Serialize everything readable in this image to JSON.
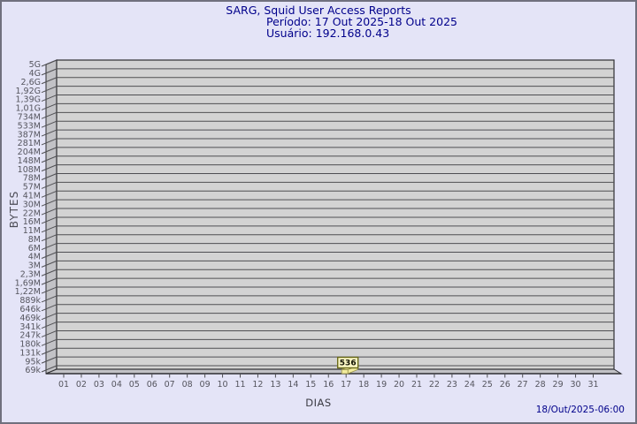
{
  "header": {
    "title": "SARG, Squid User Access Reports",
    "period": "Período: 17 Out 2025-18 Out 2025",
    "user": "Usuário: 192.168.0.43"
  },
  "footer": {
    "timestamp": "18/Out/2025-06:00"
  },
  "chart_data": {
    "type": "bar",
    "title": "SARG, Squid User Access Reports",
    "subtitle_period": "Período: 17 Out 2025-18 Out 2025",
    "subtitle_user": "Usuário: 192.168.0.43",
    "xlabel": "DIAS",
    "ylabel": "BYTES",
    "scale": "log",
    "grid": true,
    "legend": false,
    "x_ticks": [
      "01",
      "02",
      "03",
      "04",
      "05",
      "06",
      "07",
      "08",
      "09",
      "10",
      "11",
      "12",
      "13",
      "14",
      "15",
      "16",
      "17",
      "18",
      "19",
      "20",
      "21",
      "22",
      "23",
      "24",
      "25",
      "26",
      "27",
      "28",
      "29",
      "30",
      "31"
    ],
    "y_ticks": [
      "5G",
      "4G",
      "2,6G",
      "1,92G",
      "1,39G",
      "1,01G",
      "734M",
      "533M",
      "387M",
      "281M",
      "204M",
      "148M",
      "108M",
      "78M",
      "57M",
      "41M",
      "30M",
      "22M",
      "16M",
      "11M",
      "8M",
      "6M",
      "4M",
      "3M",
      "2,3M",
      "1,69M",
      "1,22M",
      "889k",
      "646k",
      "469k",
      "341k",
      "247k",
      "180k",
      "131k",
      "95k",
      "69k"
    ],
    "ylim_labels": [
      "69k",
      "5G"
    ],
    "bars": [
      {
        "x": "17",
        "value": 536,
        "label": "536"
      }
    ],
    "colors": {
      "background": "#e4e4f7",
      "window_border": "#70707e",
      "plot_bg": "#d3d3d3",
      "wall": "#c2c2c6",
      "grid": "#4f4f53",
      "frame": "#2e2e32",
      "tick_text": "#55555e",
      "title_text": "#00008b",
      "bar_fill": "#f2ec9e",
      "bar_edge": "#97914a",
      "tooltip_bg": "#fbf7c4",
      "tooltip_border": "#6b6b1a",
      "tooltip_text": "#111100"
    }
  }
}
